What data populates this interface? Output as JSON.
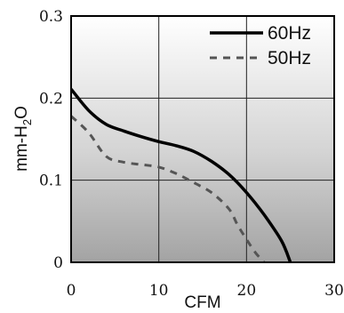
{
  "chart_data": {
    "type": "line",
    "title": "",
    "xlabel": "CFM",
    "ylabel": "mm-H",
    "ylabel_sub": "2",
    "ylabel_tail": "O",
    "xlim": [
      0,
      30
    ],
    "ylim": [
      0,
      0.3
    ],
    "xticks": [
      0,
      10,
      20,
      30
    ],
    "yticks": [
      0,
      0.1,
      0.2,
      0.3
    ],
    "xtick_labels": [
      "0",
      "10",
      "20",
      "30"
    ],
    "ytick_labels": [
      "0",
      "0.1",
      "0.2",
      "0.3"
    ],
    "grid": true,
    "legend_position": "top-right",
    "background": "vertical gradient, white to gray",
    "series": [
      {
        "name": "60Hz",
        "color": "#000000",
        "dash": "solid",
        "points": [
          [
            0,
            0.211
          ],
          [
            2,
            0.185
          ],
          [
            4,
            0.168
          ],
          [
            6,
            0.16
          ],
          [
            8,
            0.153
          ],
          [
            10,
            0.147
          ],
          [
            12,
            0.142
          ],
          [
            14,
            0.135
          ],
          [
            16,
            0.123
          ],
          [
            18,
            0.107
          ],
          [
            20,
            0.085
          ],
          [
            22,
            0.058
          ],
          [
            24,
            0.026
          ],
          [
            25,
            0.0
          ]
        ]
      },
      {
        "name": "50Hz",
        "color": "#555555",
        "dash": "dashed",
        "points": [
          [
            0,
            0.178
          ],
          [
            2,
            0.158
          ],
          [
            4,
            0.129
          ],
          [
            6,
            0.122
          ],
          [
            8,
            0.119
          ],
          [
            10,
            0.116
          ],
          [
            12,
            0.108
          ],
          [
            14,
            0.097
          ],
          [
            16,
            0.085
          ],
          [
            18,
            0.065
          ],
          [
            19,
            0.045
          ],
          [
            20,
            0.028
          ],
          [
            21,
            0.012
          ],
          [
            22,
            0.0
          ]
        ]
      }
    ]
  }
}
